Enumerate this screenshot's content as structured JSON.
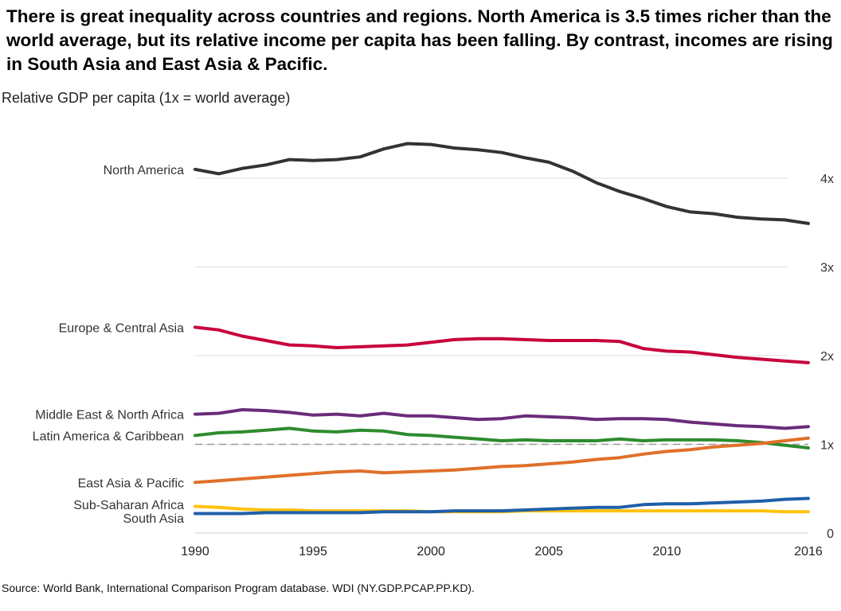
{
  "title": "There is great inequality across countries and regions. North America is 3.5 times richer than the world average, but its relative income per capita has been falling. By contrast, incomes are rising in South Asia and East Asia & Pacific.",
  "source": "Source: World Bank, International Comparison Program database. WDI (NY.GDP.PCAP.PP.KD).",
  "chart_data": {
    "type": "line",
    "title": "",
    "ylabel": "Relative GDP per capita (1x = world average)",
    "xlabel": "",
    "xlim": [
      1990,
      2016
    ],
    "ylim": [
      0,
      4.6
    ],
    "x_ticks": [
      1990,
      1995,
      2000,
      2005,
      2010,
      2016
    ],
    "y_ticks": [
      {
        "value": 0,
        "label": "0"
      },
      {
        "value": 1,
        "label": "1x"
      },
      {
        "value": 2,
        "label": "2x"
      },
      {
        "value": 3,
        "label": "3x"
      },
      {
        "value": 4,
        "label": "4x"
      }
    ],
    "reference_line": 1,
    "grid": true,
    "legend": "direct labels at left",
    "x": [
      1990,
      1991,
      1992,
      1993,
      1994,
      1995,
      1996,
      1997,
      1998,
      1999,
      2000,
      2001,
      2002,
      2003,
      2004,
      2005,
      2006,
      2007,
      2008,
      2009,
      2010,
      2011,
      2012,
      2013,
      2014,
      2015,
      2016
    ],
    "series": [
      {
        "name": "North America",
        "color": "#333333",
        "values": [
          4.1,
          4.05,
          4.11,
          4.15,
          4.21,
          4.2,
          4.21,
          4.24,
          4.33,
          4.39,
          4.38,
          4.34,
          4.32,
          4.29,
          4.23,
          4.18,
          4.08,
          3.95,
          3.85,
          3.77,
          3.68,
          3.62,
          3.6,
          3.56,
          3.54,
          3.53,
          3.49
        ]
      },
      {
        "name": "Europe & Central Asia",
        "color": "#c8003c",
        "values": [
          2.32,
          2.29,
          2.22,
          2.17,
          2.12,
          2.11,
          2.09,
          2.1,
          2.11,
          2.12,
          2.15,
          2.18,
          2.19,
          2.19,
          2.18,
          2.17,
          2.17,
          2.17,
          2.16,
          2.08,
          2.05,
          2.04,
          2.01,
          1.98,
          1.96,
          1.94,
          1.92
        ]
      },
      {
        "name": "Middle East & North Africa",
        "color": "#6a2c7a",
        "values": [
          1.34,
          1.35,
          1.39,
          1.38,
          1.36,
          1.33,
          1.34,
          1.32,
          1.35,
          1.32,
          1.32,
          1.3,
          1.28,
          1.29,
          1.32,
          1.31,
          1.3,
          1.28,
          1.29,
          1.29,
          1.28,
          1.25,
          1.23,
          1.21,
          1.2,
          1.18,
          1.2
        ]
      },
      {
        "name": "Latin America & Caribbean",
        "color": "#2e8b2e",
        "values": [
          1.1,
          1.13,
          1.14,
          1.16,
          1.18,
          1.15,
          1.14,
          1.16,
          1.15,
          1.11,
          1.1,
          1.08,
          1.06,
          1.04,
          1.05,
          1.04,
          1.04,
          1.04,
          1.06,
          1.04,
          1.05,
          1.05,
          1.05,
          1.04,
          1.02,
          0.99,
          0.96
        ]
      },
      {
        "name": "East Asia & Pacific",
        "color": "#e0702a",
        "values": [
          0.57,
          0.59,
          0.61,
          0.63,
          0.65,
          0.67,
          0.69,
          0.7,
          0.68,
          0.69,
          0.7,
          0.71,
          0.73,
          0.75,
          0.76,
          0.78,
          0.8,
          0.83,
          0.85,
          0.89,
          0.92,
          0.94,
          0.97,
          0.99,
          1.01,
          1.04,
          1.07
        ]
      },
      {
        "name": "Sub-Saharan Africa",
        "color": "#ffc20e",
        "values": [
          0.3,
          0.29,
          0.27,
          0.26,
          0.26,
          0.25,
          0.25,
          0.25,
          0.25,
          0.25,
          0.24,
          0.24,
          0.24,
          0.24,
          0.25,
          0.25,
          0.25,
          0.25,
          0.25,
          0.25,
          0.25,
          0.25,
          0.25,
          0.25,
          0.25,
          0.24,
          0.24
        ]
      },
      {
        "name": "South Asia",
        "color": "#1f5fa8",
        "values": [
          0.22,
          0.22,
          0.22,
          0.23,
          0.23,
          0.23,
          0.23,
          0.23,
          0.24,
          0.24,
          0.24,
          0.25,
          0.25,
          0.25,
          0.26,
          0.27,
          0.28,
          0.29,
          0.29,
          0.32,
          0.33,
          0.33,
          0.34,
          0.35,
          0.36,
          0.38,
          0.39
        ]
      }
    ]
  }
}
